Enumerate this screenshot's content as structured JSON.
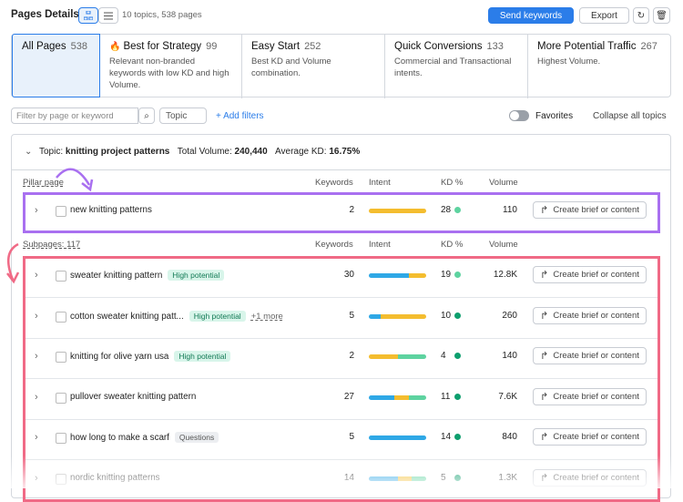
{
  "header": {
    "title": "Pages Details",
    "summary": "10 topics, 538 pages",
    "send_button": "Send keywords",
    "export_button": "Export"
  },
  "tabs": [
    {
      "label": "All Pages",
      "count": 538,
      "description": null
    },
    {
      "label": "Best for Strategy",
      "count": 99,
      "description": "Relevant non-branded keywords with low KD and high Volume."
    },
    {
      "label": "Easy Start",
      "count": 252,
      "description": "Best KD and Volume combination."
    },
    {
      "label": "Quick Conversions",
      "count": 133,
      "description": "Commercial and Transactional intents."
    },
    {
      "label": "More Potential Traffic",
      "count": 267,
      "description": "Highest Volume."
    }
  ],
  "filters": {
    "search_placeholder": "Filter by page or keyword",
    "topic": "Topic",
    "add": "+ Add filters",
    "favorites": "Favorites",
    "collapse": "Collapse all topics"
  },
  "topic": {
    "prefix": "Topic:",
    "name": "knitting project patterns",
    "volume_label": "Total Volume:",
    "volume": "240,440",
    "kd_label": "Average KD:",
    "kd": "16.75%"
  },
  "columns": [
    "Keywords",
    "Intent",
    "KD %",
    "Volume"
  ],
  "action": "Create brief or content",
  "pillar": {
    "label": "Pillar page",
    "rows": [
      {
        "keyword": "new knitting patterns",
        "tags": [],
        "keywords": 2,
        "intent": [
          {
            "color": "#f4bd2f",
            "share": 100
          }
        ],
        "kd": 28,
        "kd_color": "#5ed3a0",
        "volume": "110"
      }
    ]
  },
  "subpages": {
    "label": "Subpages: 117",
    "rows": [
      {
        "keyword": "sweater knitting pattern",
        "tags": [
          "High potential"
        ],
        "keywords": 30,
        "intent": [
          {
            "color": "#2fa8e6",
            "share": 70
          },
          {
            "color": "#f4bd2f",
            "share": 30
          }
        ],
        "kd": 19,
        "kd_color": "#5ed3a0",
        "volume": "12.8K"
      },
      {
        "keyword": "cotton sweater knitting patt...",
        "tags": [
          "High potential",
          "+1 more"
        ],
        "keywords": 5,
        "intent": [
          {
            "color": "#2fa8e6",
            "share": 20
          },
          {
            "color": "#f4bd2f",
            "share": 80
          }
        ],
        "kd": 10,
        "kd_color": "#0e9f6e",
        "volume": "260"
      },
      {
        "keyword": "knitting for olive yarn usa",
        "tags": [
          "High potential"
        ],
        "keywords": 2,
        "intent": [
          {
            "color": "#f4bd2f",
            "share": 50
          },
          {
            "color": "#5ed3a0",
            "share": 50
          }
        ],
        "kd": 4,
        "kd_color": "#0e9f6e",
        "volume": "140"
      },
      {
        "keyword": "pullover sweater knitting pattern",
        "tags": [],
        "keywords": 27,
        "intent": [
          {
            "color": "#2fa8e6",
            "share": 45
          },
          {
            "color": "#f4bd2f",
            "share": 25
          },
          {
            "color": "#5ed3a0",
            "share": 30
          }
        ],
        "kd": 11,
        "kd_color": "#0e9f6e",
        "volume": "7.6K"
      },
      {
        "keyword": "how long to make a scarf",
        "tags": [
          "Questions"
        ],
        "keywords": 5,
        "intent": [
          {
            "color": "#2fa8e6",
            "share": 100
          }
        ],
        "kd": 14,
        "kd_color": "#0e9f6e",
        "volume": "840"
      },
      {
        "keyword": "nordic knitting patterns",
        "tags": [],
        "keywords": 14,
        "intent": [
          {
            "color": "#2fa8e6",
            "share": 50
          },
          {
            "color": "#f4bd2f",
            "share": 25
          },
          {
            "color": "#5ed3a0",
            "share": 25
          }
        ],
        "kd": 5,
        "kd_color": "#0e9f6e",
        "volume": "1.3K"
      }
    ]
  }
}
